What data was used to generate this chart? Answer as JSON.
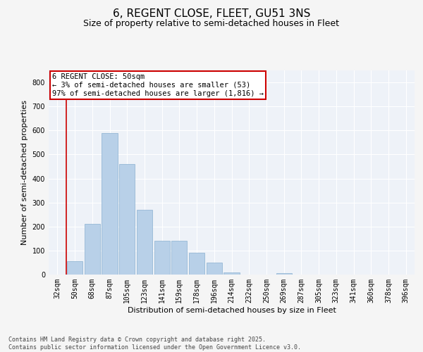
{
  "title": "6, REGENT CLOSE, FLEET, GU51 3NS",
  "subtitle": "Size of property relative to semi-detached houses in Fleet",
  "xlabel": "Distribution of semi-detached houses by size in Fleet",
  "ylabel": "Number of semi-detached properties",
  "categories": [
    "32sqm",
    "50sqm",
    "68sqm",
    "87sqm",
    "105sqm",
    "123sqm",
    "141sqm",
    "159sqm",
    "178sqm",
    "196sqm",
    "214sqm",
    "232sqm",
    "250sqm",
    "269sqm",
    "287sqm",
    "305sqm",
    "323sqm",
    "341sqm",
    "360sqm",
    "378sqm",
    "396sqm"
  ],
  "values": [
    0,
    55,
    210,
    590,
    460,
    270,
    140,
    140,
    90,
    50,
    10,
    0,
    0,
    5,
    0,
    0,
    0,
    0,
    0,
    0,
    0
  ],
  "highlight_index": 1,
  "bar_color": "#b8d0e8",
  "bar_edge_color": "#8ab0d0",
  "highlight_line_color": "#cc0000",
  "annotation_box_color": "#cc0000",
  "annotation_text": "6 REGENT CLOSE: 50sqm\n← 3% of semi-detached houses are smaller (53)\n97% of semi-detached houses are larger (1,816) →",
  "ylim": [
    0,
    850
  ],
  "yticks": [
    0,
    100,
    200,
    300,
    400,
    500,
    600,
    700,
    800
  ],
  "plot_bg_color": "#eef2f8",
  "fig_bg_color": "#f5f5f5",
  "grid_color": "#ffffff",
  "footer": "Contains HM Land Registry data © Crown copyright and database right 2025.\nContains public sector information licensed under the Open Government Licence v3.0.",
  "title_fontsize": 11,
  "subtitle_fontsize": 9,
  "axis_label_fontsize": 8,
  "tick_fontsize": 7,
  "annotation_fontsize": 7.5,
  "footer_fontsize": 6
}
